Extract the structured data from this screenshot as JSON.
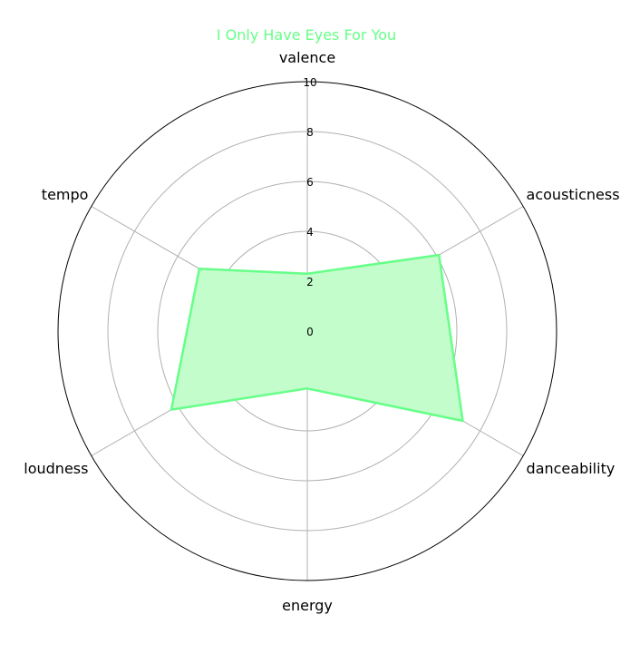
{
  "colors": {
    "series": "#66ff88",
    "series_fill": "#c3fdcc",
    "grid": "#b0b0b0",
    "frame": "#000000"
  },
  "chart_data": {
    "type": "radar",
    "title": "I Only Have Eyes For You",
    "axes": [
      "valence",
      "acousticness",
      "danceability",
      "energy",
      "loudness",
      "tempo"
    ],
    "rlim": [
      0,
      10
    ],
    "rticks": [
      0,
      2,
      4,
      6,
      8,
      10
    ],
    "rtick_labels": [
      "0",
      "2",
      "4",
      "6",
      "8",
      "10"
    ],
    "grid": true,
    "series": [
      {
        "values": [
          2.3,
          6.1,
          7.2,
          2.3,
          6.3,
          5.0
        ]
      }
    ]
  }
}
